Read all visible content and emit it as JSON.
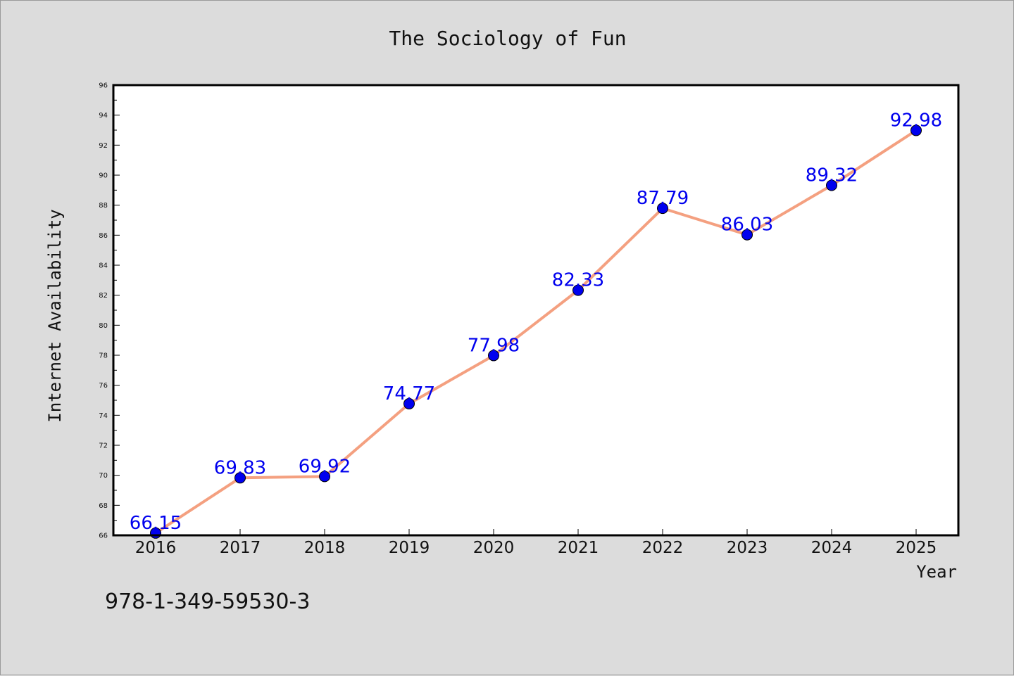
{
  "chart_data": {
    "type": "line",
    "title": "The Sociology of Fun",
    "xlabel": "Year",
    "ylabel": "Internet Availability",
    "categories": [
      "2016",
      "2017",
      "2018",
      "2019",
      "2020",
      "2021",
      "2022",
      "2023",
      "2024",
      "2025"
    ],
    "series": [
      {
        "values": [
          66.15,
          69.83,
          69.92,
          74.77,
          77.98,
          82.33,
          87.79,
          86.03,
          89.32,
          92.98
        ],
        "data_labels": [
          "66.15",
          "69.83",
          "69.92",
          "74.77",
          "77.98",
          "82.33",
          "87.79",
          "86.03",
          "89.32",
          "92.98"
        ],
        "line_color": "#f4a080",
        "marker_color": "#0000ee"
      }
    ],
    "ylim": [
      66,
      96
    ],
    "yticks": [
      "66",
      "68",
      "70",
      "72",
      "74",
      "76",
      "78",
      "80",
      "82",
      "84",
      "86",
      "88",
      "90",
      "92",
      "94",
      "96"
    ],
    "grid": false,
    "legend": "none",
    "footnote": "978-1-349-59530-3"
  }
}
